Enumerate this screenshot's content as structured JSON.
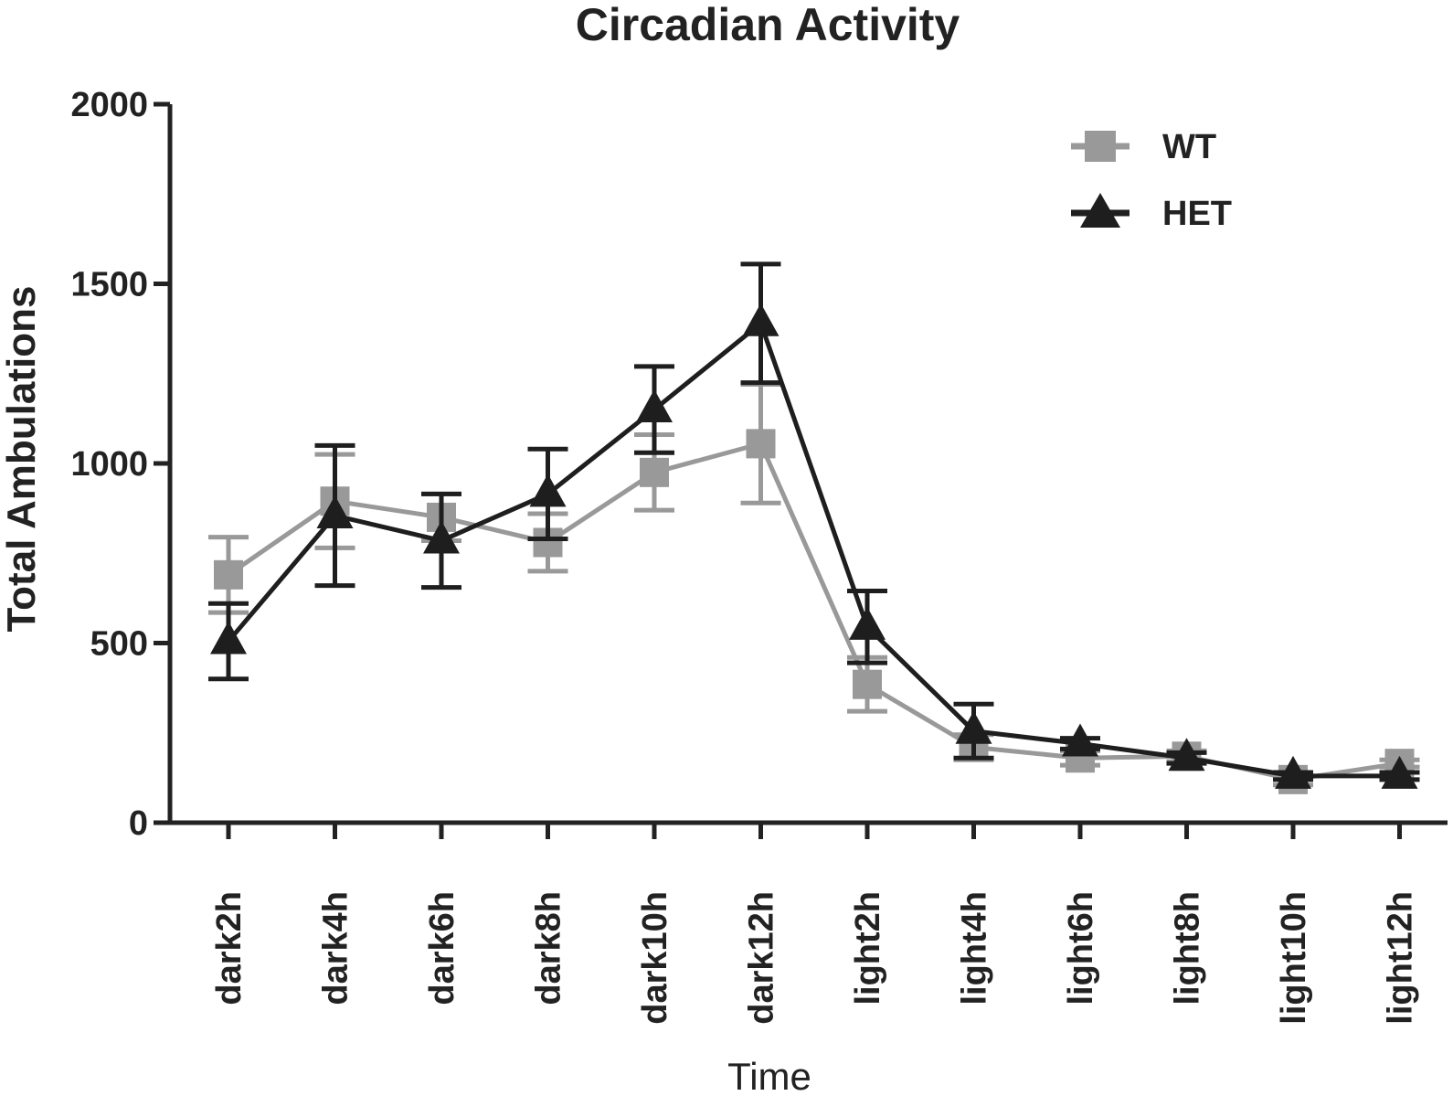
{
  "chart_data": {
    "type": "line",
    "title": "Circadian Activity",
    "xlabel": "Time",
    "ylabel": "Total Ambulations",
    "ylim": [
      0,
      2000
    ],
    "yticks": [
      0,
      500,
      1000,
      1500,
      2000
    ],
    "categories": [
      "dark2h",
      "dark4h",
      "dark6h",
      "dark8h",
      "dark10h",
      "dark12h",
      "light2h",
      "light4h",
      "light6h",
      "light8h",
      "light10h",
      "light12h"
    ],
    "legend_position": "top-right",
    "series": [
      {
        "name": "WT",
        "color": "#999999",
        "marker": "square",
        "values": [
          690,
          895,
          850,
          780,
          975,
          1055,
          385,
          210,
          180,
          185,
          120,
          165
        ],
        "errors": [
          105,
          130,
          65,
          80,
          105,
          165,
          75,
          35,
          20,
          15,
          15,
          10
        ]
      },
      {
        "name": "HET",
        "color": "#1e1e1e",
        "marker": "triangle",
        "values": [
          505,
          855,
          785,
          915,
          1150,
          1390,
          545,
          255,
          220,
          180,
          130,
          130
        ],
        "errors": [
          105,
          195,
          130,
          125,
          120,
          165,
          100,
          75,
          15,
          15,
          10,
          10
        ]
      }
    ]
  }
}
